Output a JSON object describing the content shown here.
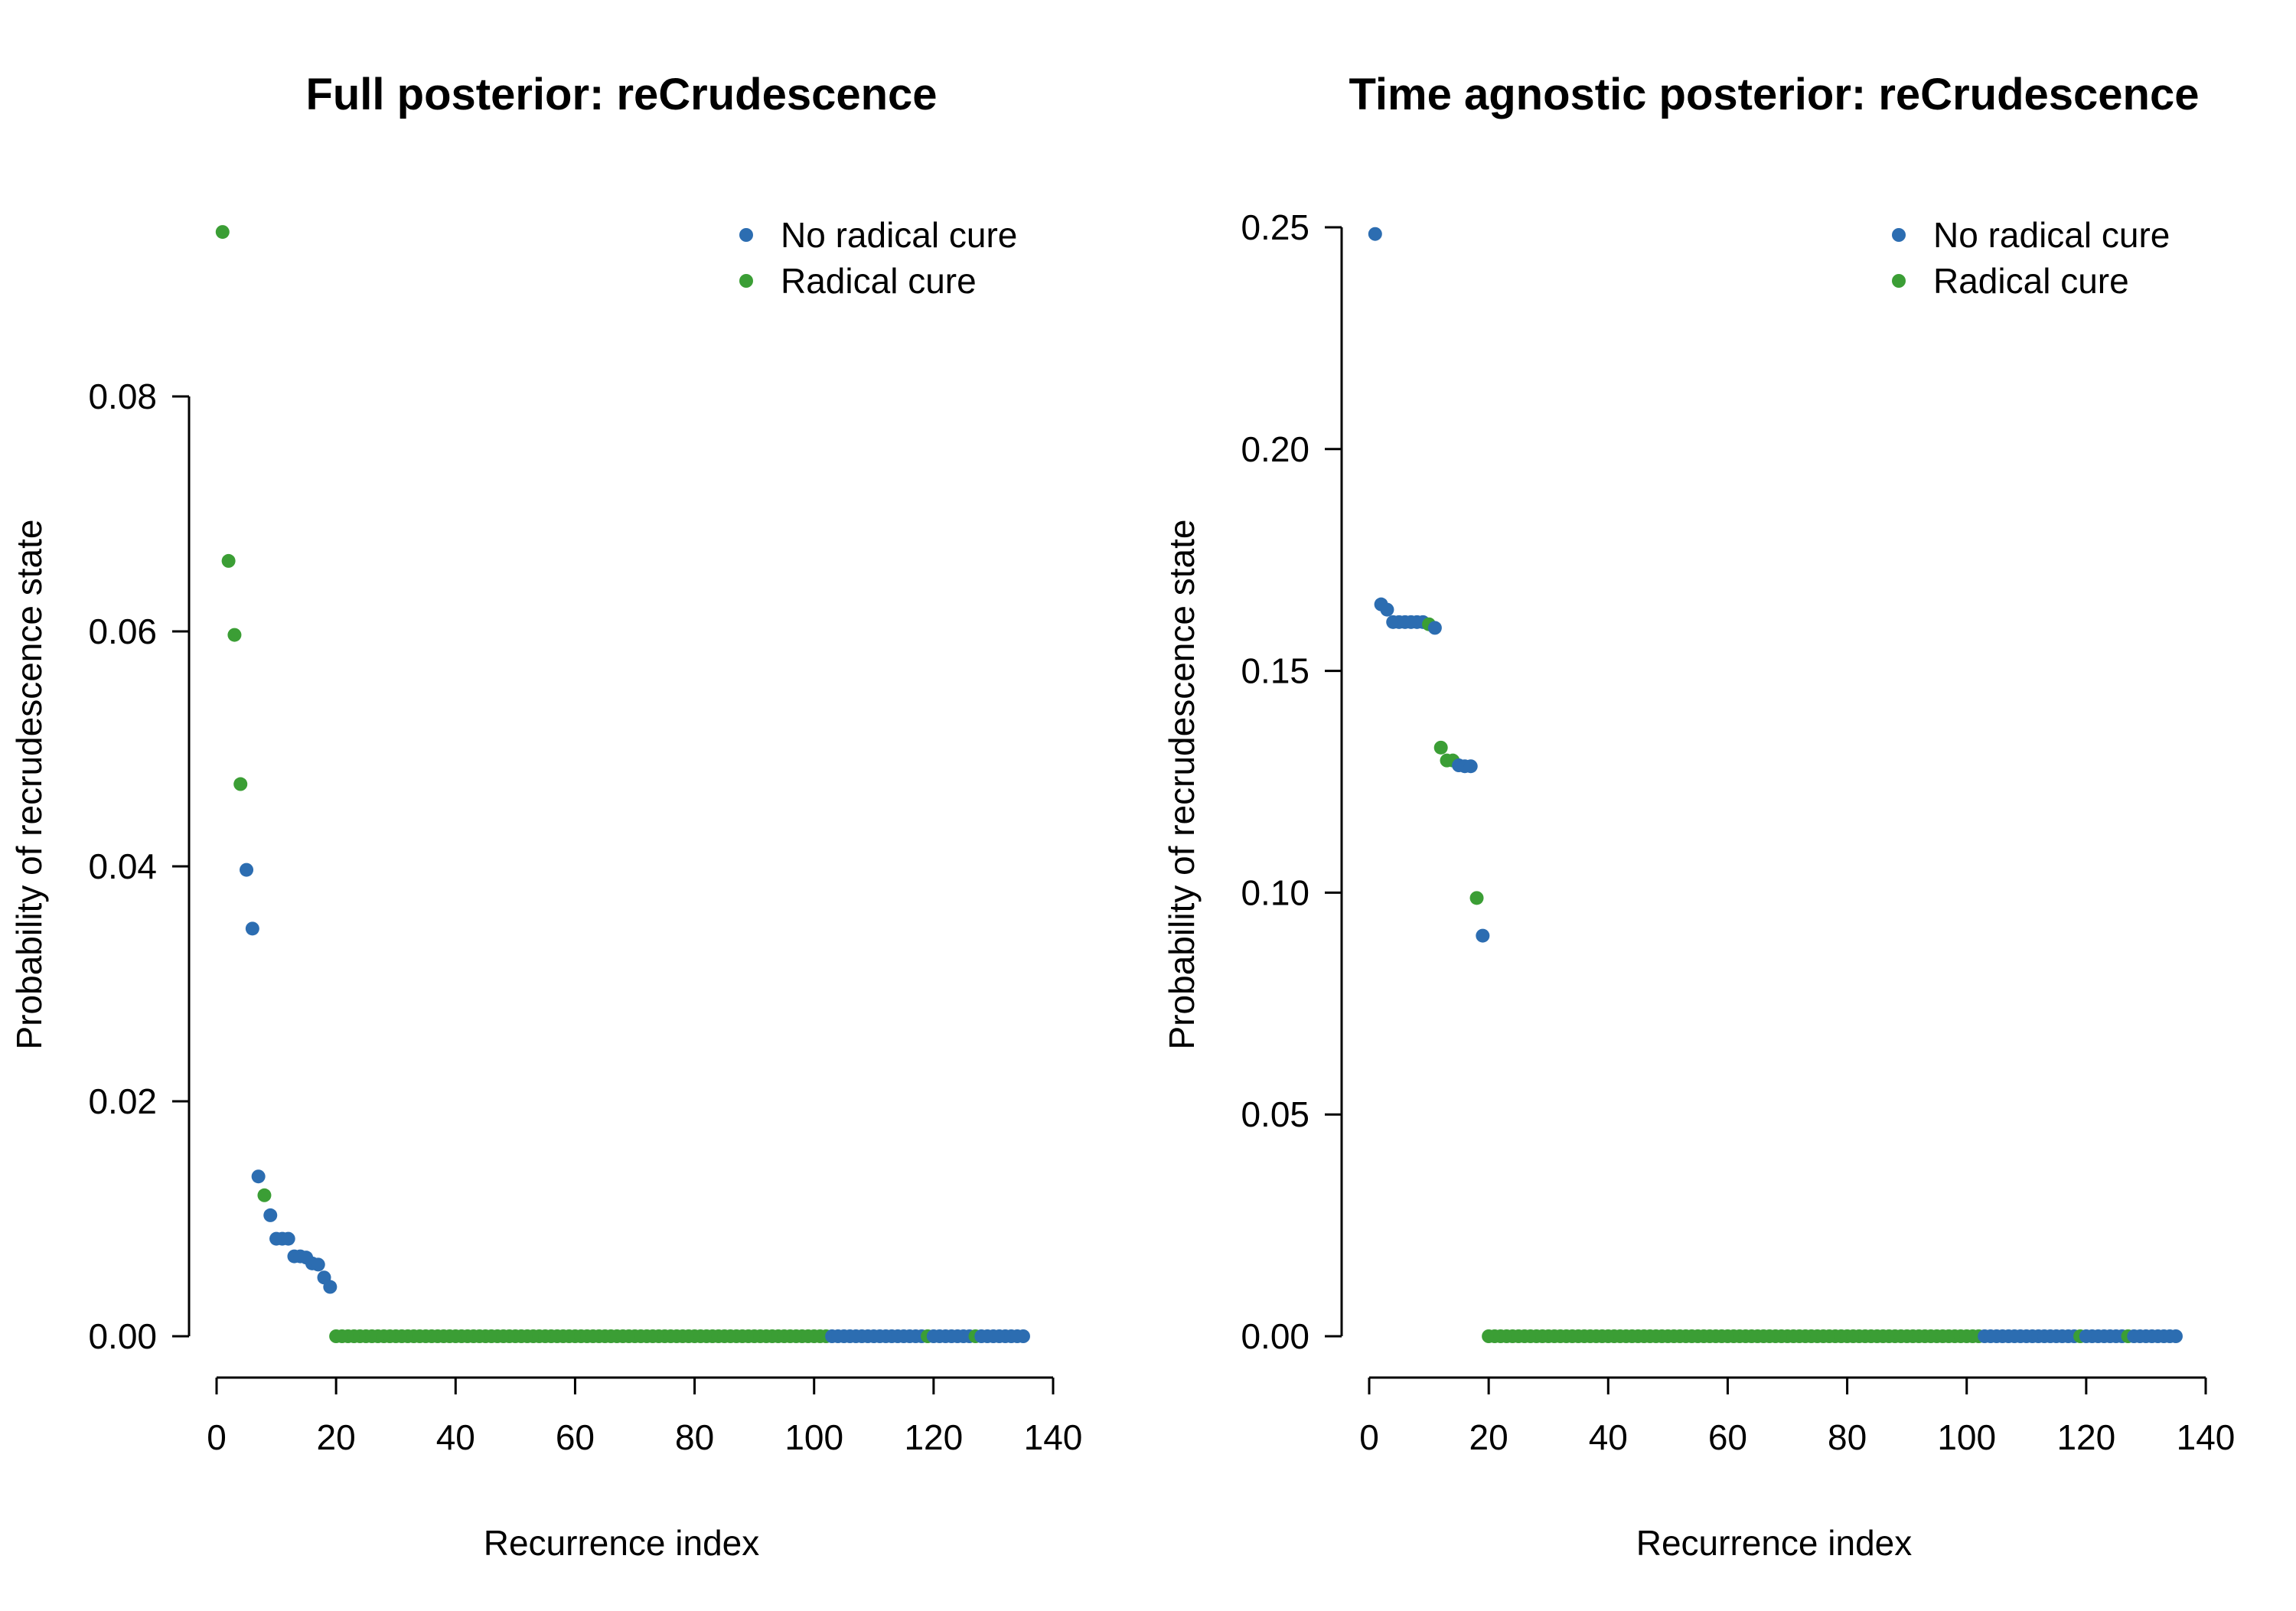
{
  "colors": {
    "no_radical_cure": "#2c6db1",
    "radical_cure": "#3b9e35"
  },
  "chart_data": [
    {
      "type": "scatter",
      "title": "Full posterior: reCrudescence",
      "xlabel": "Recurrence index",
      "ylabel": "Probability of recrudescence state",
      "xlim": [
        0,
        140
      ],
      "ylim": [
        0,
        0.08
      ],
      "xticks": [
        "0",
        "20",
        "40",
        "60",
        "80",
        "100",
        "120",
        "140"
      ],
      "yticks": [
        "0.00",
        "0.02",
        "0.04",
        "0.06",
        "0.08"
      ],
      "grid": false,
      "legend_position": "top-right",
      "legend": [
        "No radical cure",
        "Radical cure"
      ],
      "head": [
        {
          "x": 1,
          "y": 0.094,
          "s": 1
        },
        {
          "x": 2,
          "y": 0.066,
          "s": 1
        },
        {
          "x": 3,
          "y": 0.0597,
          "s": 1
        },
        {
          "x": 4,
          "y": 0.047,
          "s": 1
        },
        {
          "x": 5,
          "y": 0.0397,
          "s": 0
        },
        {
          "x": 6,
          "y": 0.0347,
          "s": 0
        },
        {
          "x": 7,
          "y": 0.0136,
          "s": 0
        },
        {
          "x": 8,
          "y": 0.012,
          "s": 1
        },
        {
          "x": 9,
          "y": 0.0103,
          "s": 0
        },
        {
          "x": 10,
          "y": 0.0083,
          "s": 0
        },
        {
          "x": 11,
          "y": 0.0083,
          "s": 0
        },
        {
          "x": 12,
          "y": 0.0083,
          "s": 0
        },
        {
          "x": 13,
          "y": 0.0068,
          "s": 0
        },
        {
          "x": 14,
          "y": 0.0068,
          "s": 0
        },
        {
          "x": 15,
          "y": 0.0067,
          "s": 0
        },
        {
          "x": 16,
          "y": 0.0062,
          "s": 0
        },
        {
          "x": 17,
          "y": 0.0061,
          "s": 0
        },
        {
          "x": 18,
          "y": 0.005,
          "s": 0
        },
        {
          "x": 19,
          "y": 0.0042,
          "s": 0
        }
      ],
      "tail": {
        "y": 0,
        "segments": [
          {
            "from": 20,
            "to": 102,
            "s": 1
          },
          {
            "from": 103,
            "to": 118,
            "s": 0
          },
          {
            "from": 119,
            "to": 119,
            "s": 1
          },
          {
            "from": 120,
            "to": 126,
            "s": 0
          },
          {
            "from": 127,
            "to": 127,
            "s": 1
          },
          {
            "from": 128,
            "to": 135,
            "s": 0
          }
        ]
      }
    },
    {
      "type": "scatter",
      "title": "Time agnostic posterior: reCrudescence",
      "xlabel": "Recurrence index",
      "ylabel": "Probability of recrudescence state",
      "xlim": [
        0,
        140
      ],
      "ylim": [
        0,
        0.25
      ],
      "xticks": [
        "0",
        "20",
        "40",
        "60",
        "80",
        "100",
        "120",
        "140"
      ],
      "yticks": [
        "0.00",
        "0.05",
        "0.10",
        "0.15",
        "0.20",
        "0.25"
      ],
      "grid": false,
      "legend_position": "top-right",
      "legend": [
        "No radical cure",
        "Radical cure"
      ],
      "head": [
        {
          "x": 1,
          "y": 0.2485,
          "s": 0
        },
        {
          "x": 2,
          "y": 0.165,
          "s": 0
        },
        {
          "x": 3,
          "y": 0.1638,
          "s": 0
        },
        {
          "x": 4,
          "y": 0.161,
          "s": 0
        },
        {
          "x": 5,
          "y": 0.161,
          "s": 0
        },
        {
          "x": 6,
          "y": 0.161,
          "s": 0
        },
        {
          "x": 7,
          "y": 0.161,
          "s": 0
        },
        {
          "x": 8,
          "y": 0.161,
          "s": 0
        },
        {
          "x": 9,
          "y": 0.161,
          "s": 0
        },
        {
          "x": 10,
          "y": 0.1605,
          "s": 1
        },
        {
          "x": 11,
          "y": 0.1597,
          "s": 0
        },
        {
          "x": 12,
          "y": 0.1327,
          "s": 1
        },
        {
          "x": 13,
          "y": 0.1298,
          "s": 1
        },
        {
          "x": 14,
          "y": 0.1298,
          "s": 1
        },
        {
          "x": 15,
          "y": 0.1287,
          "s": 0
        },
        {
          "x": 16,
          "y": 0.1285,
          "s": 0
        },
        {
          "x": 17,
          "y": 0.1285,
          "s": 0
        },
        {
          "x": 18,
          "y": 0.0988,
          "s": 1
        },
        {
          "x": 19,
          "y": 0.0903,
          "s": 0
        }
      ],
      "tail": {
        "y": 0,
        "segments": [
          {
            "from": 20,
            "to": 102,
            "s": 1
          },
          {
            "from": 103,
            "to": 118,
            "s": 0
          },
          {
            "from": 119,
            "to": 119,
            "s": 1
          },
          {
            "from": 120,
            "to": 126,
            "s": 0
          },
          {
            "from": 127,
            "to": 127,
            "s": 1
          },
          {
            "from": 128,
            "to": 135,
            "s": 0
          }
        ]
      }
    }
  ]
}
